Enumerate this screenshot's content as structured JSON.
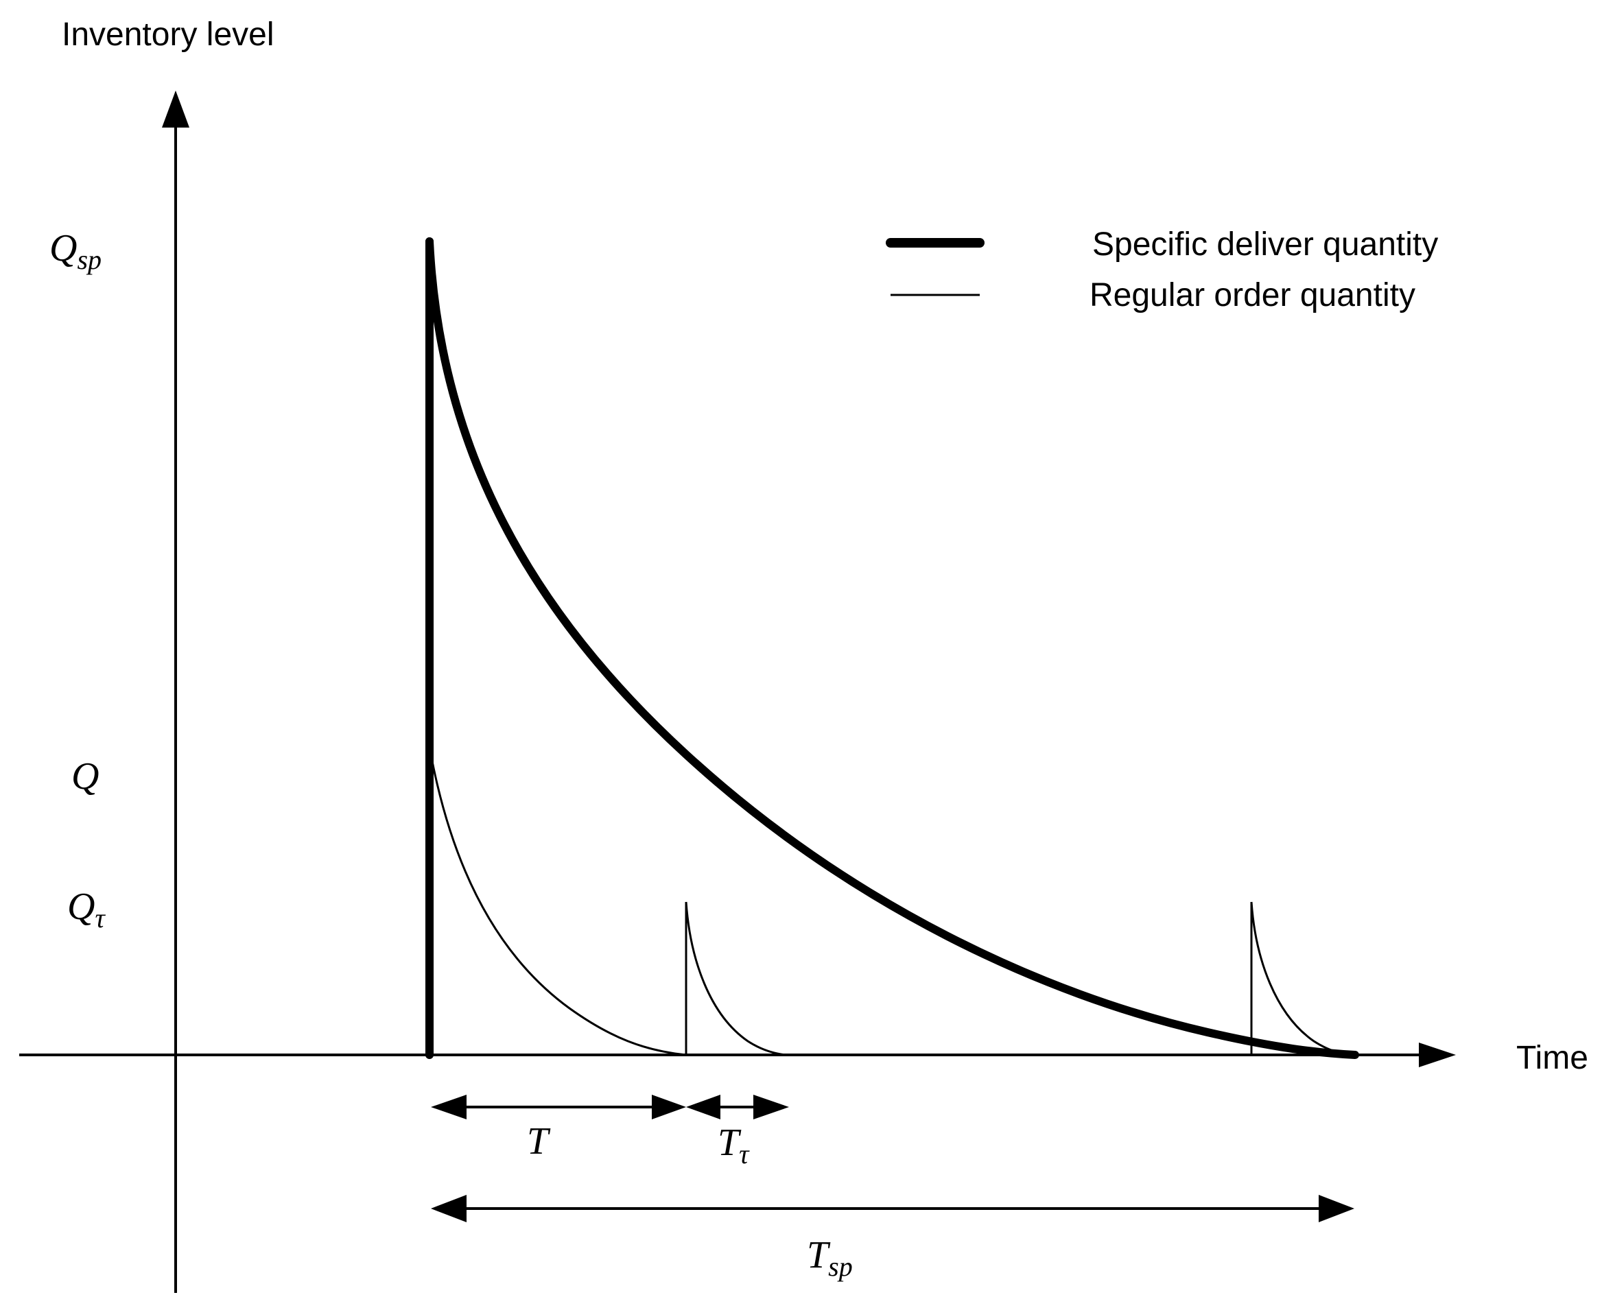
{
  "axes": {
    "y_label": "Inventory level",
    "x_label": "Time"
  },
  "y_ticks": {
    "q_sp": {
      "main": "Q",
      "sub": "sp"
    },
    "q": {
      "main": "Q",
      "sub": ""
    },
    "q_tau": {
      "main": "Q",
      "sub": "τ"
    }
  },
  "intervals": {
    "t": {
      "main": "T",
      "sub": ""
    },
    "t_tau": {
      "main": "T",
      "sub": "τ"
    },
    "t_sp": {
      "main": "T",
      "sub": "sp"
    }
  },
  "legend": {
    "specific": "Specific deliver quantity",
    "regular": "Regular order quantity"
  },
  "colors": {
    "line": "#000000",
    "background": "#ffffff"
  }
}
